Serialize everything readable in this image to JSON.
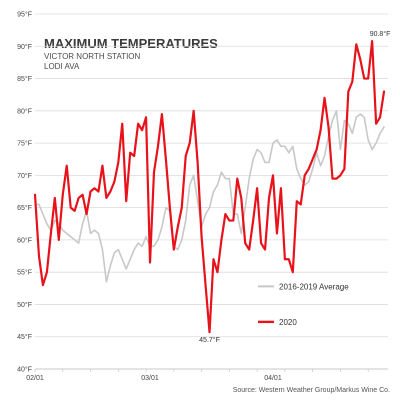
{
  "chart_data": {
    "type": "line",
    "title": "MAXIMUM TEMPERATURES",
    "subtitle_lines": [
      "VICTOR NORTH STATION",
      "LODI AVA"
    ],
    "source": "Source: Western Weather Group/Markus Wine Co.",
    "ylim": [
      40,
      95
    ],
    "y_ticks": [
      "40°F",
      "45°F",
      "50°F",
      "55°F",
      "60°F",
      "65°F",
      "70°F",
      "75°F",
      "80°F",
      "85°F",
      "90°F",
      "95°F"
    ],
    "x_ticks": [
      {
        "label": "02/01",
        "day": 0
      },
      {
        "label": "03/01",
        "day": 29
      },
      {
        "label": "04/01",
        "day": 60
      }
    ],
    "x_range_days": [
      0,
      89
    ],
    "grid": true,
    "legend_position": "center-right",
    "annotations": [
      {
        "text": "90.8°F",
        "day": 87,
        "value": 90.8
      },
      {
        "text": "45.7°F",
        "day": 44,
        "value": 45.7
      }
    ],
    "series": [
      {
        "name": "2016-2019 Average",
        "color": "#c8c8c8",
        "values": [
          65.5,
          65.5,
          64.0,
          62.5,
          61.5,
          63.0,
          62.5,
          61.5,
          61.0,
          60.5,
          60.0,
          59.5,
          62.5,
          64.5,
          61.0,
          61.5,
          61.0,
          58.5,
          53.5,
          56.0,
          58.0,
          58.5,
          57.0,
          55.5,
          57.0,
          58.5,
          59.5,
          59.0,
          60.5,
          59.0,
          59.0,
          60.0,
          62.0,
          65.0,
          64.5,
          59.0,
          58.5,
          60.0,
          63.0,
          68.5,
          70.0,
          66.0,
          62.0,
          64.0,
          65.0,
          67.5,
          68.5,
          70.5,
          69.5,
          69.5,
          64.0,
          64.0,
          61.0,
          65.0,
          69.5,
          72.5,
          74.0,
          73.5,
          72.0,
          72.0,
          75.0,
          75.5,
          74.5,
          74.5,
          73.5,
          74.5,
          71.0,
          69.5,
          68.5,
          69.0,
          71.0,
          73.5,
          71.5,
          73.0,
          76.0,
          78.5,
          80.0,
          74.0,
          78.5,
          78.0,
          76.5,
          79.0,
          79.5,
          79.0,
          75.5,
          74.0,
          75.0,
          76.5,
          77.5
        ]
      },
      {
        "name": "2020",
        "color": "#e8121a",
        "values": [
          67.0,
          57.5,
          53.0,
          55.0,
          61.0,
          66.5,
          60.0,
          67.0,
          71.5,
          65.0,
          64.5,
          66.5,
          67.0,
          64.0,
          67.5,
          68.0,
          67.5,
          71.5,
          66.5,
          67.5,
          69.0,
          72.0,
          78.0,
          66.0,
          73.5,
          73.0,
          78.0,
          77.0,
          79.0,
          56.5,
          70.5,
          74.5,
          79.5,
          72.5,
          65.0,
          58.5,
          62.0,
          65.0,
          73.0,
          75.0,
          80.0,
          72.0,
          60.5,
          53.0,
          45.7,
          57.0,
          55.0,
          60.0,
          64.0,
          63.0,
          63.0,
          69.5,
          66.5,
          59.5,
          58.5,
          63.0,
          68.0,
          59.5,
          58.5,
          66.5,
          70.0,
          61.0,
          68.0,
          57.0,
          57.0,
          55.0,
          66.0,
          65.5,
          70.0,
          71.0,
          72.5,
          74.0,
          77.0,
          82.0,
          77.5,
          69.5,
          69.5,
          70.0,
          71.0,
          83.0,
          84.5,
          90.3,
          88.0,
          85.0,
          85.0,
          90.8,
          78.0,
          79.0,
          83.0
        ]
      }
    ]
  }
}
